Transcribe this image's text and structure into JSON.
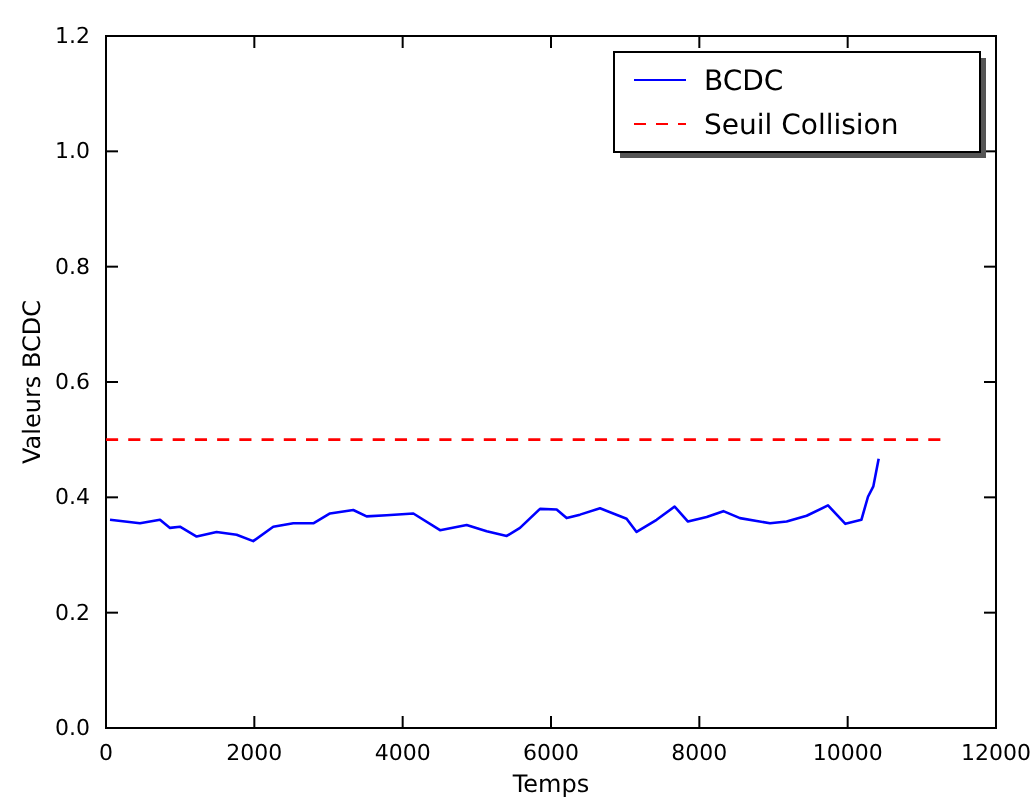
{
  "chart_data": {
    "type": "line",
    "xlabel": "Temps",
    "ylabel": "Valeurs BCDC",
    "xlim": [
      0,
      12000
    ],
    "xticks": [
      0,
      2000,
      4000,
      6000,
      8000,
      10000,
      12000
    ],
    "ylim": [
      0,
      1.2
    ],
    "yticks": [
      {
        "value": 0,
        "label": "0.0"
      },
      {
        "value": 0.2,
        "label": "0.2"
      },
      {
        "value": 0.4,
        "label": "0.4"
      },
      {
        "value": 0.6,
        "label": "0.6"
      },
      {
        "value": 0.8,
        "label": "0.8"
      },
      {
        "value": 1.0,
        "label": "1.0"
      },
      {
        "value": 1.2,
        "label": "1.2"
      }
    ],
    "grid": false,
    "legend": "top right",
    "series": [
      {
        "name": "BCDC",
        "color": "#0000ff",
        "line_style": "solid",
        "x": [
          54,
          458,
          728,
          863,
          997,
          1222,
          1491,
          1761,
          1985,
          2255,
          2525,
          2795,
          3020,
          3334,
          3514,
          3784,
          4144,
          4504,
          4863,
          5133,
          5403,
          5582,
          5852,
          6076,
          6211,
          6391,
          6661,
          7019,
          7154,
          7424,
          7667,
          7847,
          8099,
          8324,
          8548,
          8953,
          9177,
          9447,
          9735,
          9969,
          10185,
          10274,
          10346,
          10418
        ],
        "values": [
          0.361,
          0.355,
          0.361,
          0.347,
          0.349,
          0.332,
          0.34,
          0.335,
          0.324,
          0.349,
          0.355,
          0.355,
          0.372,
          0.378,
          0.367,
          0.369,
          0.372,
          0.343,
          0.352,
          0.341,
          0.333,
          0.347,
          0.38,
          0.379,
          0.364,
          0.37,
          0.381,
          0.363,
          0.34,
          0.361,
          0.384,
          0.358,
          0.366,
          0.376,
          0.364,
          0.355,
          0.358,
          0.368,
          0.386,
          0.354,
          0.361,
          0.401,
          0.419,
          0.467
        ]
      },
      {
        "name": "Seuil Collision",
        "color": "#ff0000",
        "line_style": "dashed",
        "x": [
          0,
          11250
        ],
        "values": [
          0.5,
          0.5
        ]
      }
    ]
  }
}
